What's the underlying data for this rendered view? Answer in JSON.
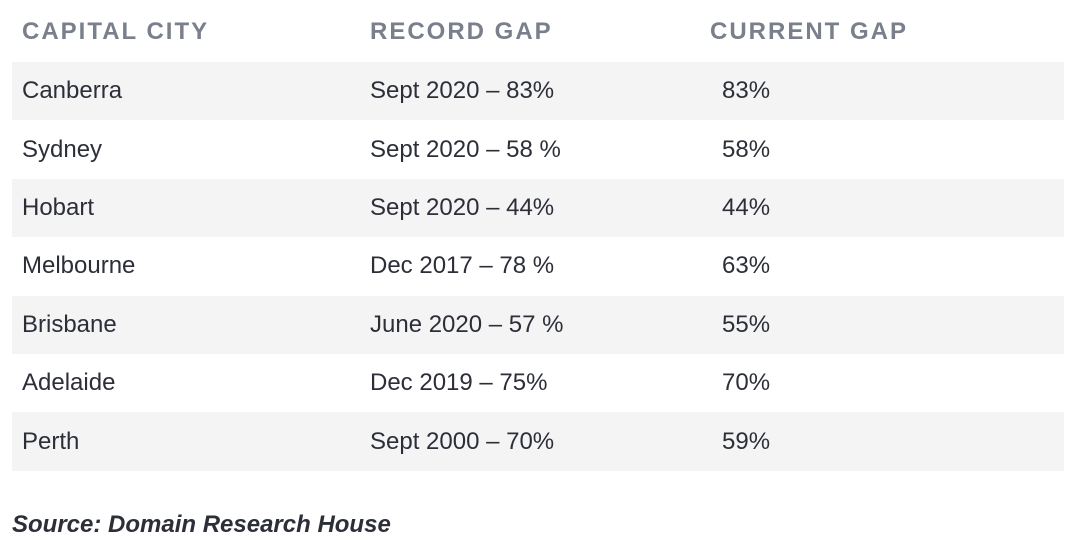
{
  "table": {
    "headers": [
      "CAPITAL CITY",
      "RECORD GAP",
      "CURRENT GAP"
    ],
    "rows": [
      {
        "city": "Canberra",
        "record": "Sept 2020 – 83%",
        "current": "83%"
      },
      {
        "city": "Sydney",
        "record": "Sept 2020 – 58 %",
        "current": "58%"
      },
      {
        "city": "Hobart",
        "record": "Sept 2020 – 44%",
        "current": "44%"
      },
      {
        "city": "Melbourne",
        "record": "Dec 2017 – 78 %",
        "current": "63%"
      },
      {
        "city": "Brisbane",
        "record": "June 2020 – 57 %",
        "current": "55%"
      },
      {
        "city": "Adelaide",
        "record": "Dec 2019 – 75%",
        "current": "70%"
      },
      {
        "city": "Perth",
        "record": "Sept 2000 – 70%",
        "current": "59%"
      }
    ]
  },
  "source": "Source: Domain Research House",
  "colors": {
    "header_text": "#7a7f8c",
    "body_text": "#2c2f38",
    "stripe": "#f4f4f5"
  }
}
